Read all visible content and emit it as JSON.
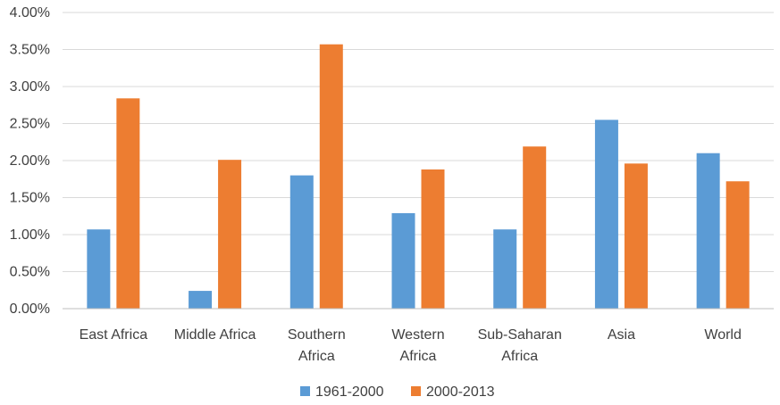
{
  "chart_data": {
    "type": "bar",
    "title": "",
    "xlabel": "",
    "ylabel": "",
    "categories": [
      [
        "East Africa"
      ],
      [
        "Middle Africa"
      ],
      [
        "Southern",
        "Africa"
      ],
      [
        "Western",
        "Africa"
      ],
      [
        "Sub-Saharan",
        "Africa"
      ],
      [
        "Asia"
      ],
      [
        "World"
      ]
    ],
    "series": [
      {
        "name": "1961-2000",
        "color": "#5b9bd5",
        "values": [
          1.07,
          0.24,
          1.8,
          1.29,
          1.07,
          2.55,
          2.1
        ]
      },
      {
        "name": "2000-2013",
        "color": "#ed7d31",
        "values": [
          2.84,
          2.01,
          3.57,
          1.88,
          2.19,
          1.96,
          1.72
        ]
      }
    ],
    "ylim": [
      0,
      4
    ],
    "yticks": [
      {
        "value": 0,
        "label": "0.00%"
      },
      {
        "value": 0.5,
        "label": "0.50%"
      },
      {
        "value": 1.0,
        "label": "1.00%"
      },
      {
        "value": 1.5,
        "label": "1.50%"
      },
      {
        "value": 2.0,
        "label": "2.00%"
      },
      {
        "value": 2.5,
        "label": "2.50%"
      },
      {
        "value": 3.0,
        "label": "3.00%"
      },
      {
        "value": 3.5,
        "label": "3.50%"
      },
      {
        "value": 4.0,
        "label": "4.00%"
      }
    ],
    "grid": true,
    "legend": "bottom"
  }
}
